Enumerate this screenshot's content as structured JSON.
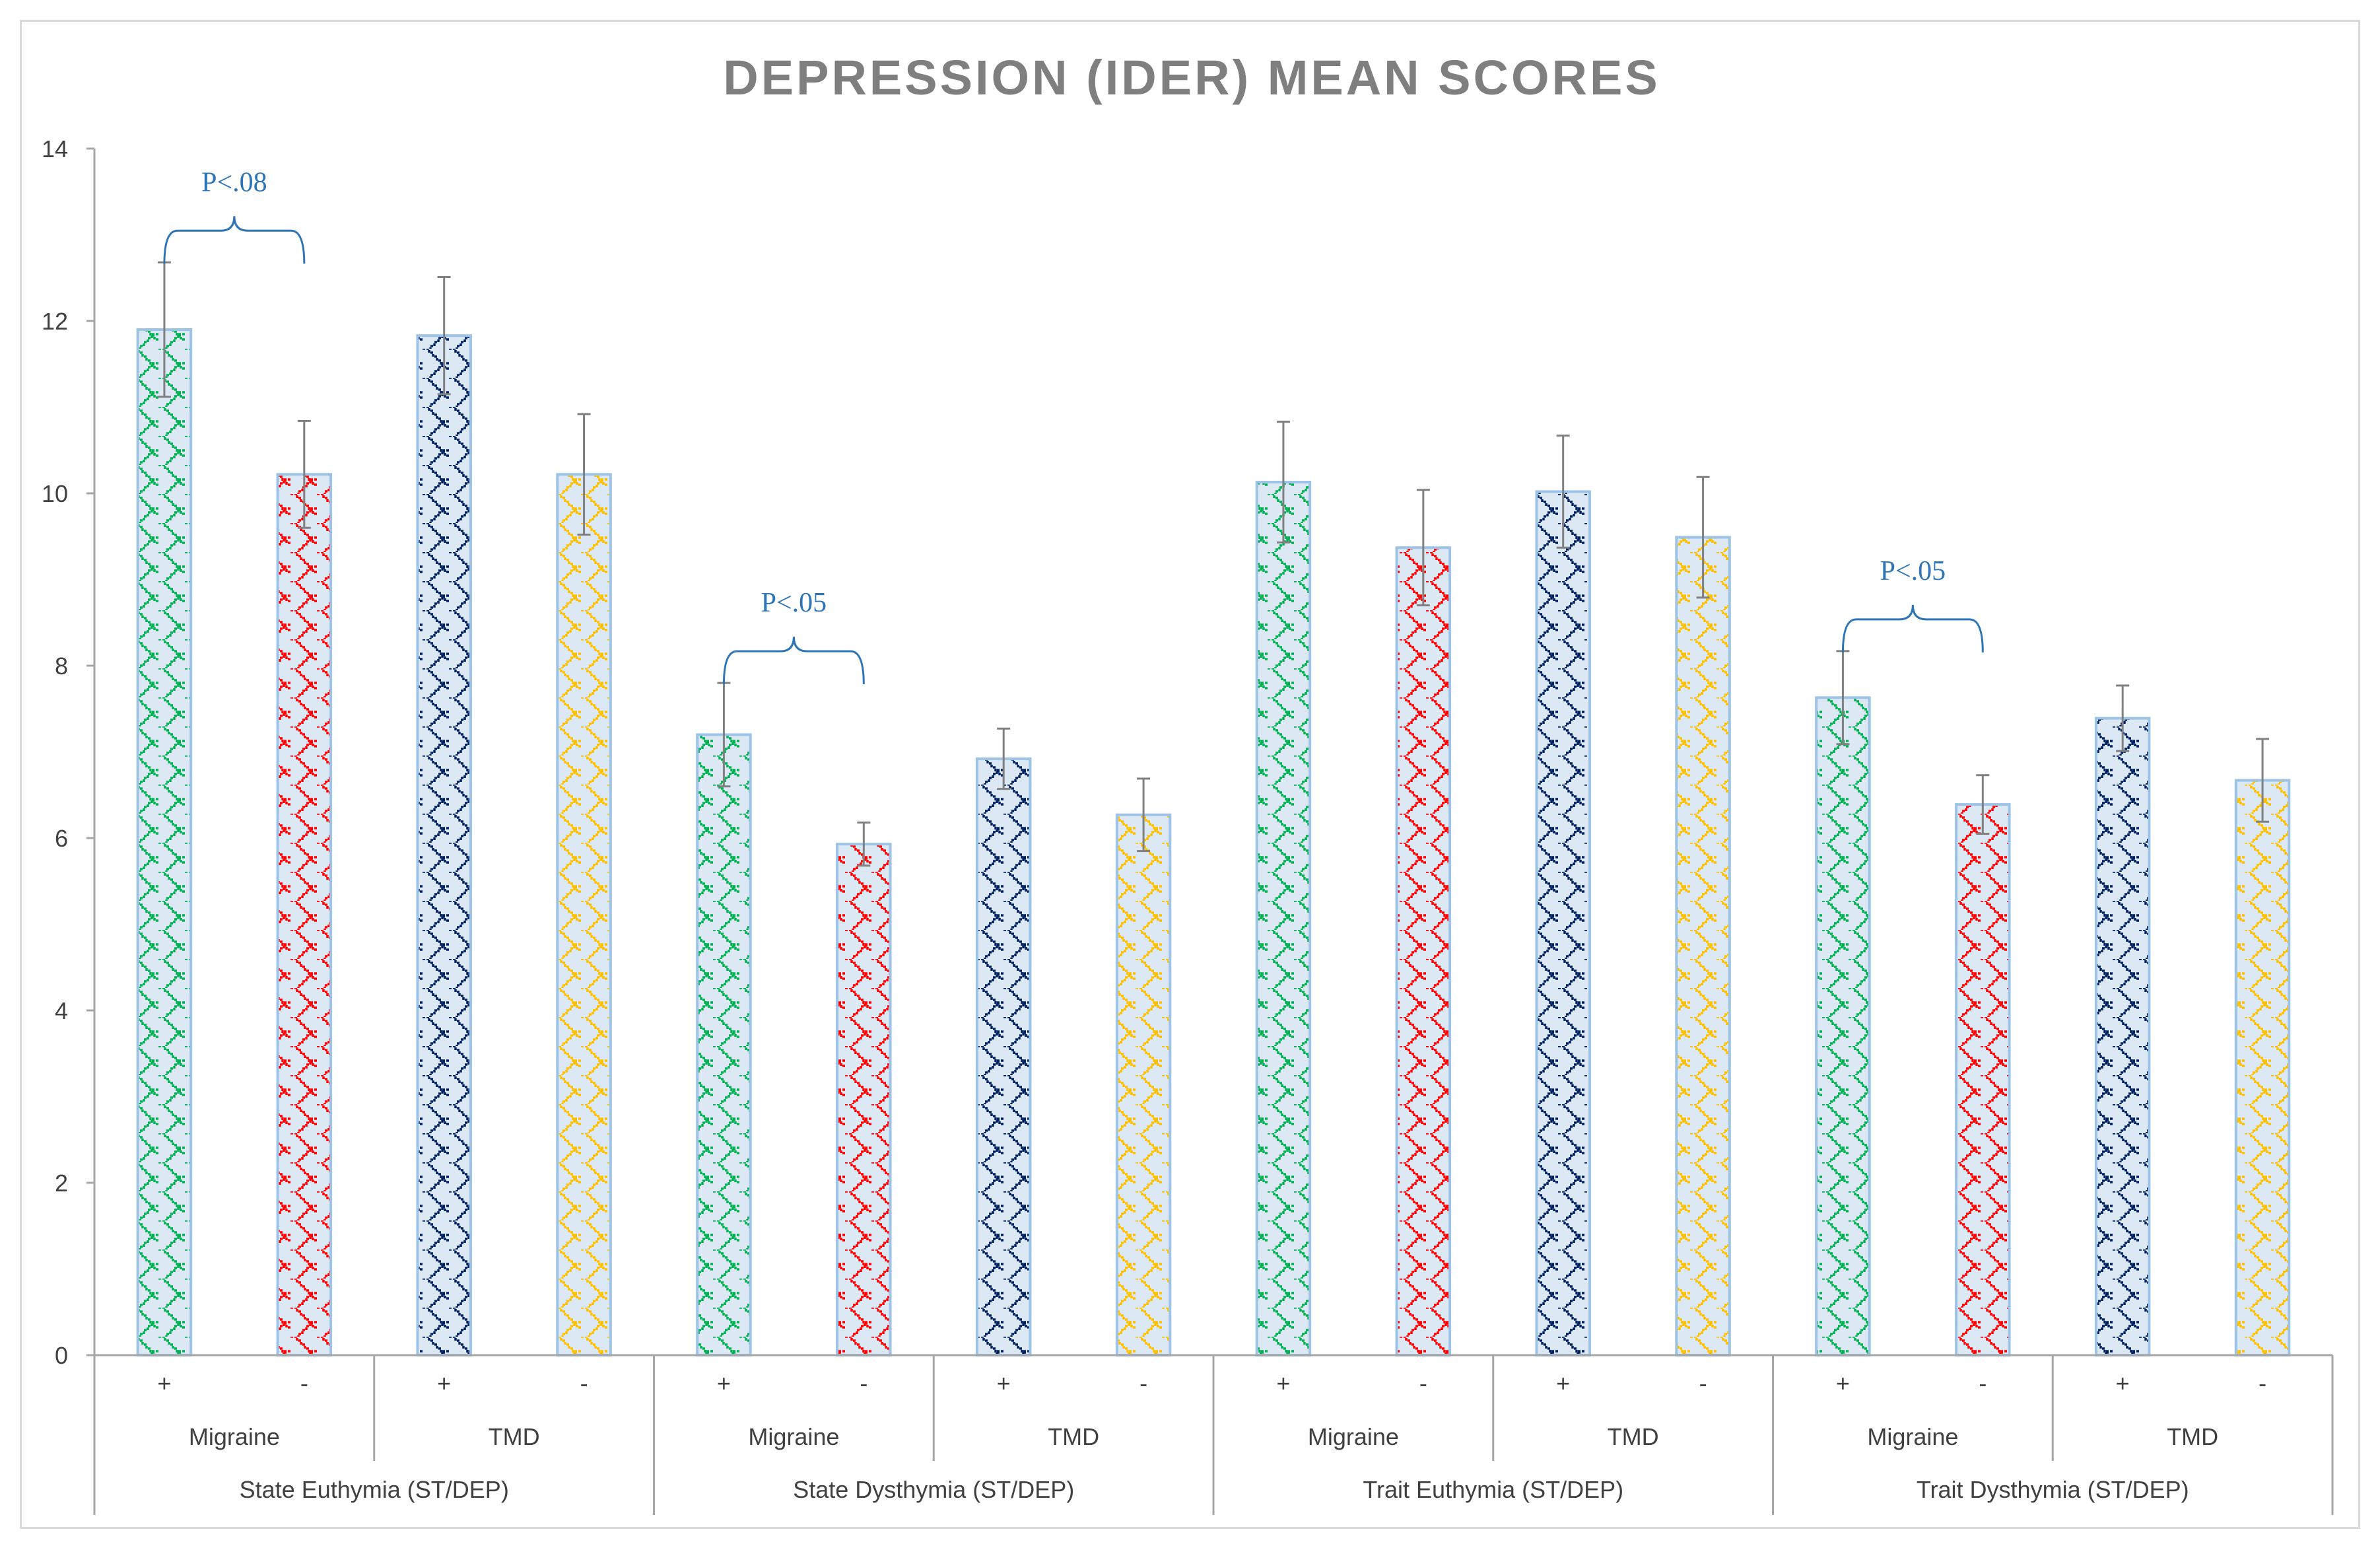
{
  "chart_data": {
    "type": "bar",
    "title": "DEPRESSION (IDER) MEAN SCORES",
    "ylim": [
      0,
      14
    ],
    "yticks": [
      0,
      2,
      4,
      6,
      8,
      10,
      12,
      14
    ],
    "grid": false,
    "legend": "none",
    "groups": [
      {
        "label": "State Euthymia (ST/DEP)",
        "conditions": [
          {
            "label": "Migraine",
            "bars": [
              {
                "sign": "+",
                "value": 11.9,
                "err": 0.78,
                "color": "green"
              },
              {
                "sign": "-",
                "value": 10.22,
                "err": 0.62,
                "color": "red"
              }
            ]
          },
          {
            "label": "TMD",
            "bars": [
              {
                "sign": "+",
                "value": 11.83,
                "err": 0.68,
                "color": "navy"
              },
              {
                "sign": "-",
                "value": 10.22,
                "err": 0.7,
                "color": "gold"
              }
            ]
          }
        ]
      },
      {
        "label": "State Dysthymia (ST/DEP)",
        "conditions": [
          {
            "label": "Migraine",
            "bars": [
              {
                "sign": "+",
                "value": 7.2,
                "err": 0.6,
                "color": "green"
              },
              {
                "sign": "-",
                "value": 5.93,
                "err": 0.25,
                "color": "red"
              }
            ]
          },
          {
            "label": "TMD",
            "bars": [
              {
                "sign": "+",
                "value": 6.92,
                "err": 0.35,
                "color": "navy"
              },
              {
                "sign": "-",
                "value": 6.27,
                "err": 0.42,
                "color": "gold"
              }
            ]
          }
        ]
      },
      {
        "label": "Trait Euthymia (ST/DEP)",
        "conditions": [
          {
            "label": "Migraine",
            "bars": [
              {
                "sign": "+",
                "value": 10.13,
                "err": 0.7,
                "color": "green"
              },
              {
                "sign": "-",
                "value": 9.37,
                "err": 0.67,
                "color": "red"
              }
            ]
          },
          {
            "label": "TMD",
            "bars": [
              {
                "sign": "+",
                "value": 10.02,
                "err": 0.65,
                "color": "navy"
              },
              {
                "sign": "-",
                "value": 9.49,
                "err": 0.7,
                "color": "gold"
              }
            ]
          }
        ]
      },
      {
        "label": "Trait Dysthymia (ST/DEP)",
        "conditions": [
          {
            "label": "Migraine",
            "bars": [
              {
                "sign": "+",
                "value": 7.63,
                "err": 0.54,
                "color": "green"
              },
              {
                "sign": "-",
                "value": 6.39,
                "err": 0.34,
                "color": "red"
              }
            ]
          },
          {
            "label": "TMD",
            "bars": [
              {
                "sign": "+",
                "value": 7.39,
                "err": 0.38,
                "color": "navy"
              },
              {
                "sign": "-",
                "value": 6.67,
                "err": 0.48,
                "color": "gold"
              }
            ]
          }
        ]
      }
    ],
    "annotations": [
      {
        "text": "P<.08",
        "group": 0,
        "condition": 0
      },
      {
        "text": "P<.05",
        "group": 1,
        "condition": 0
      },
      {
        "text": "P<.05",
        "group": 3,
        "condition": 0
      }
    ]
  },
  "colors": {
    "green": "#00b050",
    "red": "#ff0000",
    "navy": "#002060",
    "gold": "#ffc000",
    "bar_fill": "#dce9f5",
    "bar_edge": "#9dc3e6",
    "axis": "#a6a6a6",
    "error_bar": "#808080",
    "annotation": "#2e75b6",
    "title": "#7f7f7f"
  }
}
